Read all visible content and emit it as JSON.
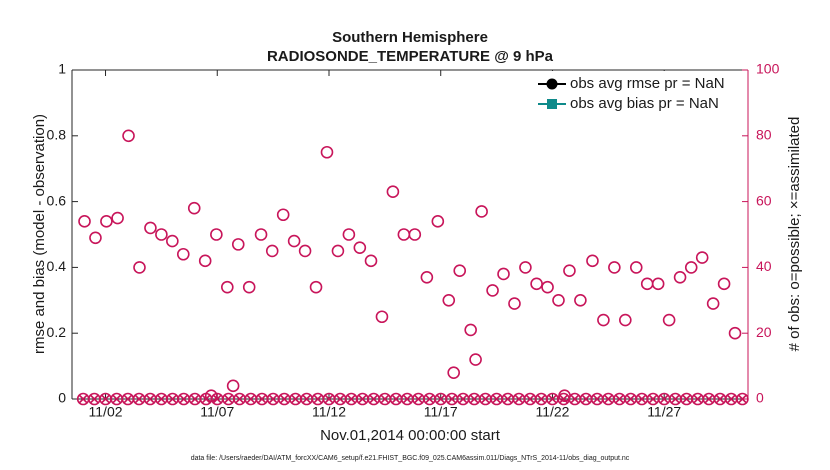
{
  "chart_data": {
    "type": "scatter",
    "title": [
      "Southern Hemisphere",
      "RADIOSONDE_TEMPERATURE @ 9 hPa"
    ],
    "xlabel": "Nov.01,2014 00:00:00 start",
    "ylabel": "rmse and bias (model - observation)",
    "y2label": "# of obs: o=possible; ×=assimilated",
    "footnote": "data file: /Users/raeder/DAI/ATM_forcXX/CAM6_setup/f.e21.FHIST_BGC.f09_025.CAM6assim.011/Diags_NTrS_2014-11/obs_diag_output.nc",
    "xlim": [
      0.5,
      30.75
    ],
    "xticks": [
      {
        "value": 2,
        "label": "11/02"
      },
      {
        "value": 7,
        "label": "11/07"
      },
      {
        "value": 12,
        "label": "11/12"
      },
      {
        "value": 17,
        "label": "11/17"
      },
      {
        "value": 22,
        "label": "11/22"
      },
      {
        "value": 27,
        "label": "11/27"
      }
    ],
    "ylim": [
      0,
      1
    ],
    "yticks": [
      0,
      0.2,
      0.4,
      0.6,
      0.8,
      1
    ],
    "y2lim": [
      0,
      100
    ],
    "y2ticks": [
      0,
      20,
      40,
      60,
      80,
      100
    ],
    "y2color": "#c8155a",
    "legend": "upper right",
    "legend_series": [
      {
        "name": "obs avg rmse pr = NaN",
        "color": "#000000",
        "marker": "circle",
        "values": []
      },
      {
        "name": "obs avg bias pr = NaN",
        "color": "#0f8a8a",
        "marker": "square",
        "values": []
      }
    ],
    "series": [
      {
        "axis": "y2",
        "color": "#c8155a",
        "marker": "o",
        "x": [
          1.06,
          1.55,
          2.04,
          2.54,
          3.03,
          3.52,
          4.01,
          4.5,
          4.99,
          5.48,
          5.97,
          6.46,
          6.96,
          7.45,
          7.94,
          8.43,
          8.96,
          9.46,
          9.95,
          10.44,
          10.93,
          11.42,
          11.91,
          12.4,
          12.89,
          13.38,
          13.88,
          14.37,
          14.86,
          15.35,
          15.84,
          16.38,
          16.87,
          17.36,
          17.58,
          17.85,
          18.34,
          18.56,
          18.83,
          19.32,
          19.81,
          20.3,
          20.79,
          21.29,
          21.78,
          22.27,
          22.76,
          23.25,
          23.79,
          24.28,
          24.77,
          25.26,
          25.75,
          26.24,
          26.73,
          27.22,
          27.71,
          28.21,
          28.7,
          29.19,
          29.68,
          30.17
        ],
        "values": [
          54,
          49,
          54,
          55,
          80,
          40,
          52,
          50,
          48,
          44,
          58,
          42,
          50,
          34,
          47,
          34,
          50,
          45,
          56,
          48,
          45,
          34,
          75,
          45,
          50,
          46,
          42,
          25,
          63,
          50,
          50,
          37,
          54,
          30,
          8,
          39,
          21,
          12,
          57,
          33,
          38,
          29,
          40,
          35,
          34,
          30,
          39,
          30,
          42,
          24,
          40,
          24,
          40,
          35,
          35,
          24,
          37,
          40,
          43,
          29,
          35,
          20
        ]
      },
      {
        "axis": "y2",
        "color": "#c8155a",
        "marker": "o",
        "x": [
          6.73,
          7.71,
          22.54
        ],
        "values": [
          1,
          4,
          1
        ]
      },
      {
        "axis": "y2",
        "color": "#c8155a",
        "marker": "ox",
        "x": [
          1,
          1.5,
          2,
          2.5,
          3,
          3.5,
          4,
          4.5,
          5,
          5.5,
          6,
          6.5,
          7,
          7.5,
          8,
          8.5,
          9,
          9.5,
          10,
          10.5,
          11,
          11.5,
          12,
          12.5,
          13,
          13.5,
          14,
          14.5,
          15,
          15.5,
          16,
          16.5,
          17,
          17.5,
          18,
          18.5,
          19,
          19.5,
          20,
          20.5,
          21,
          21.5,
          22,
          22.5,
          23,
          23.5,
          24,
          24.5,
          25,
          25.5,
          26,
          26.5,
          27,
          27.5,
          28,
          28.5,
          29,
          29.5,
          30,
          30.5
        ],
        "values": [
          0,
          0,
          0,
          0,
          0,
          0,
          0,
          0,
          0,
          0,
          0,
          0,
          0,
          0,
          0,
          0,
          0,
          0,
          0,
          0,
          0,
          0,
          0,
          0,
          0,
          0,
          0,
          0,
          0,
          0,
          0,
          0,
          0,
          0,
          0,
          0,
          0,
          0,
          0,
          0,
          0,
          0,
          0,
          0,
          0,
          0,
          0,
          0,
          0,
          0,
          0,
          0,
          0,
          0,
          0,
          0,
          0,
          0,
          0,
          0
        ]
      }
    ]
  }
}
